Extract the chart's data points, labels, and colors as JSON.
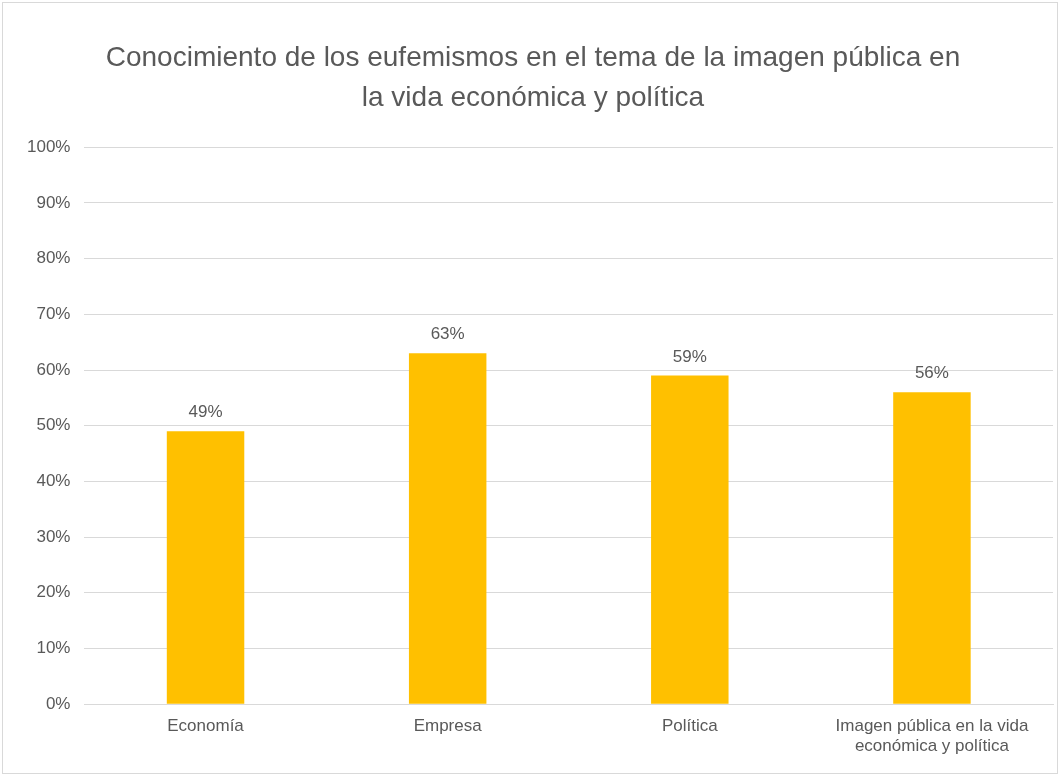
{
  "chart_data": {
    "type": "bar",
    "title": "Conocimiento de los eufemismos en el tema de la imagen pública en la vida económica y política",
    "categories": [
      "Economía",
      "Empresa",
      "Política",
      "Imagen pública en la vida económica y política"
    ],
    "values": [
      49,
      63,
      59,
      56
    ],
    "value_labels": [
      "49%",
      "63%",
      "59%",
      "56%"
    ],
    "color": "#ffc000",
    "ylim": [
      0,
      100
    ],
    "yticks": [
      {
        "value": 0,
        "label": "0%"
      },
      {
        "value": 10,
        "label": "10%"
      },
      {
        "value": 20,
        "label": "20%"
      },
      {
        "value": 30,
        "label": "30%"
      },
      {
        "value": 40,
        "label": "40%"
      },
      {
        "value": 50,
        "label": "50%"
      },
      {
        "value": 60,
        "label": "60%"
      },
      {
        "value": 70,
        "label": "70%"
      },
      {
        "value": 80,
        "label": "80%"
      },
      {
        "value": 90,
        "label": "90%"
      },
      {
        "value": 100,
        "label": "100%"
      }
    ],
    "grid": "y",
    "legend": false
  }
}
